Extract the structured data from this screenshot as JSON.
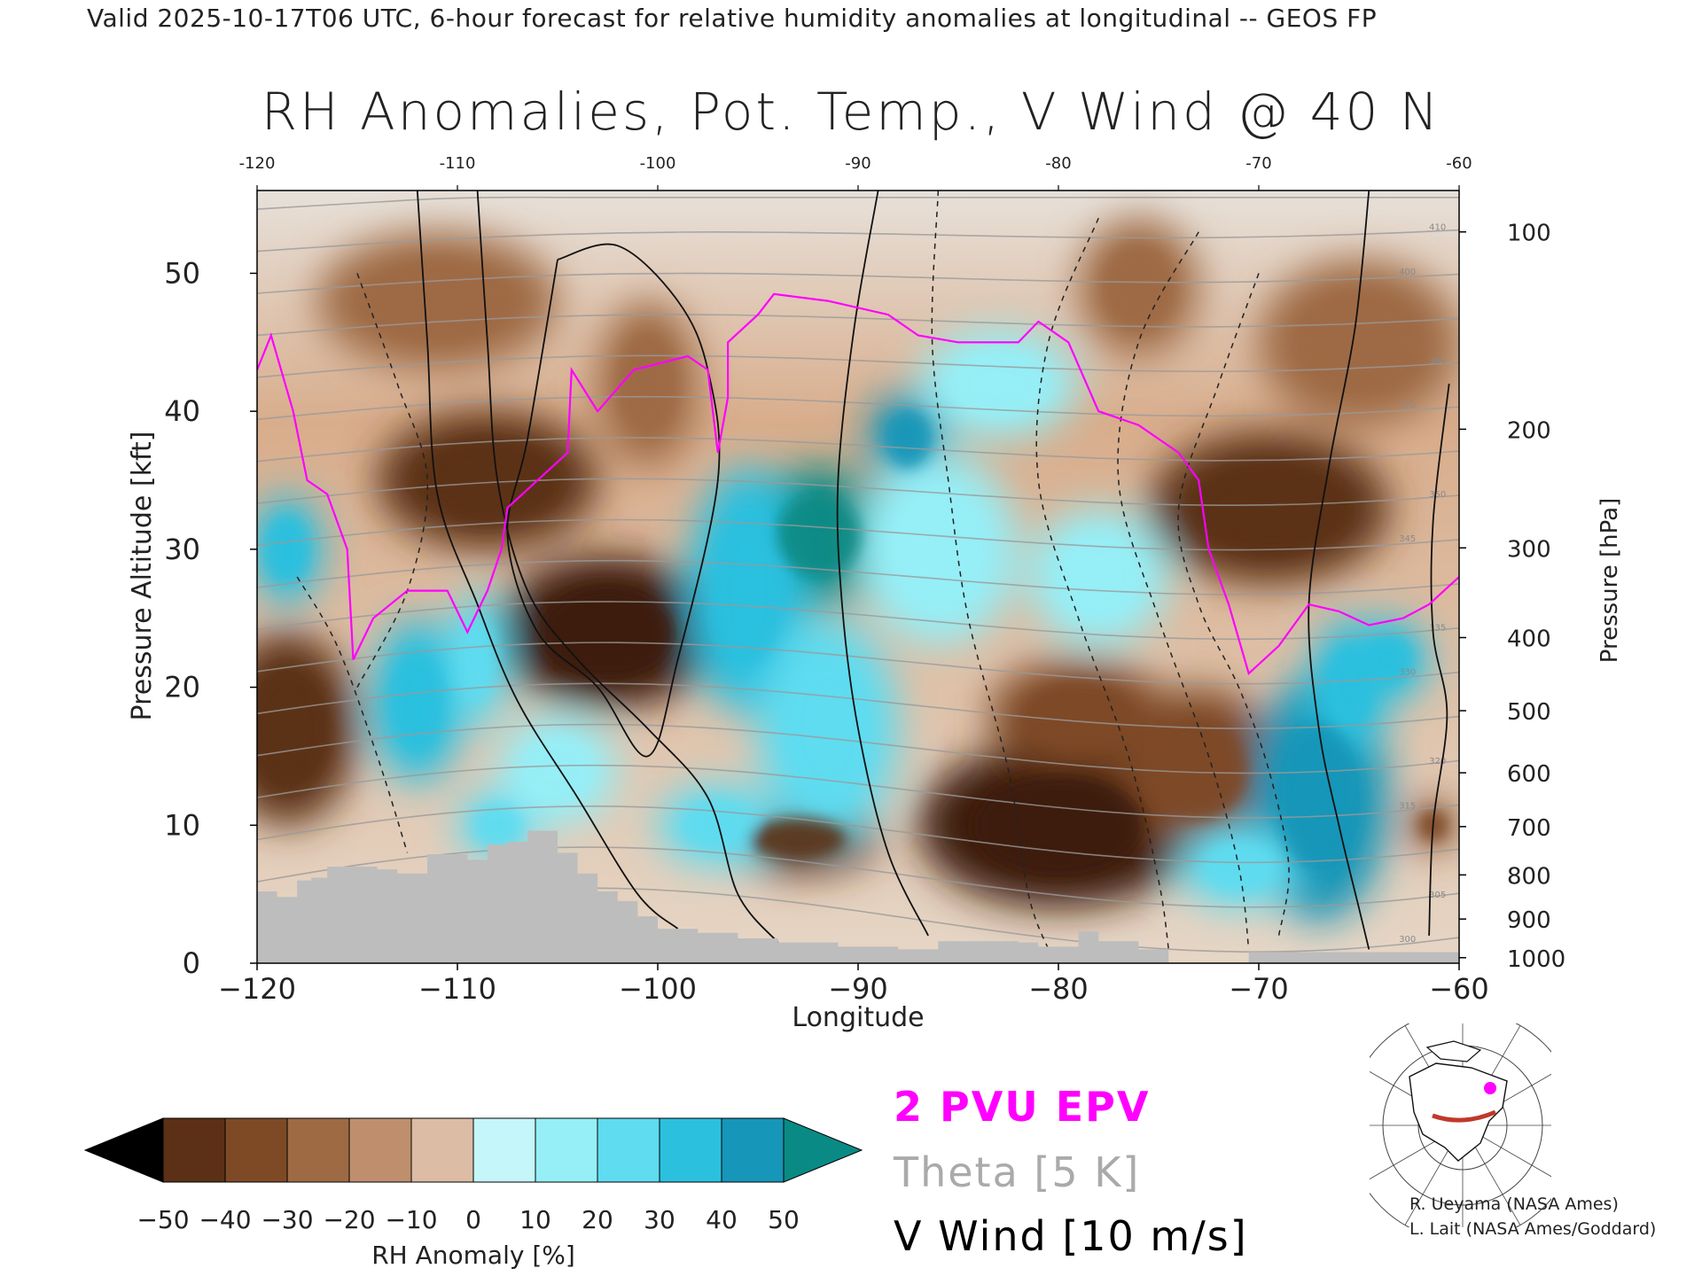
{
  "header": {
    "title": "Valid 2025-10-17T06 UTC, 6-hour forecast for relative humidity anomalies at longitudinal -- GEOS FP"
  },
  "chart_data": {
    "type": "heatmap",
    "title": "RH Anomalies, Pot. Temp., V Wind @ 40 N",
    "xlabel": "Longitude",
    "ylabel_left": "Pressure Altitude [kft]",
    "ylabel_right": "Pressure [hPa]",
    "xlim": [
      -120,
      -60
    ],
    "ylim": [
      0,
      56
    ],
    "x_ticks": [
      -120,
      -110,
      -100,
      -90,
      -80,
      -70,
      -60
    ],
    "x_tick_labels": [
      "−120",
      "−110",
      "−100",
      "−90",
      "−80",
      "−70",
      "−60"
    ],
    "top_ticks": [
      -120,
      -110,
      -100,
      -90,
      -80,
      -70,
      -60
    ],
    "top_tick_labels": [
      "-120",
      "-110",
      "-100",
      "-90",
      "-80",
      "-70",
      "-60"
    ],
    "y_ticks": [
      0,
      10,
      20,
      30,
      40,
      50
    ],
    "y_tick_labels": [
      "0",
      "10",
      "20",
      "30",
      "40",
      "50"
    ],
    "pressure_ticks": [
      {
        "hPa": "100",
        "kft": 53.0
      },
      {
        "hPa": "200",
        "kft": 38.7
      },
      {
        "hPa": "300",
        "kft": 30.1
      },
      {
        "hPa": "400",
        "kft": 23.6
      },
      {
        "hPa": "500",
        "kft": 18.3
      },
      {
        "hPa": "600",
        "kft": 13.8
      },
      {
        "hPa": "700",
        "kft": 9.9
      },
      {
        "hPa": "800",
        "kft": 6.4
      },
      {
        "hPa": "900",
        "kft": 3.2
      },
      {
        "hPa": "1000",
        "kft": 0.4
      }
    ],
    "colorbar": {
      "label": "RH Anomaly [%]",
      "ticks": [
        "−50",
        "−40",
        "−30",
        "−20",
        "−10",
        "0",
        "10",
        "20",
        "30",
        "40",
        "50"
      ],
      "colors": [
        "#3c1c0c",
        "#5c3016",
        "#7e4a26",
        "#9e6a44",
        "#bf8f6d",
        "#dcbca5",
        "#c4f6fa",
        "#96eef6",
        "#5fdcf0",
        "#2cc0df",
        "#1696b8",
        "#0a8a84"
      ]
    },
    "series": [
      {
        "name": "2 PVU EPV",
        "color": "#ff00ff"
      },
      {
        "name": "Theta [5 K]",
        "color": "#aaaaaa"
      },
      {
        "name": "V Wind [10 m/s]",
        "color": "#000000"
      }
    ],
    "pvu_line": [
      [
        -120,
        43
      ],
      [
        -119.3,
        45.5
      ],
      [
        -118.2,
        40
      ],
      [
        -117.5,
        35
      ],
      [
        -116.5,
        34
      ],
      [
        -115.5,
        30
      ],
      [
        -115.2,
        22
      ],
      [
        -114.2,
        25
      ],
      [
        -112.5,
        27
      ],
      [
        -110.5,
        27
      ],
      [
        -109.5,
        24
      ],
      [
        -108.5,
        27
      ],
      [
        -107.8,
        30
      ],
      [
        -107.5,
        33
      ],
      [
        -106,
        35
      ],
      [
        -104.5,
        37
      ],
      [
        -104.3,
        43
      ],
      [
        -103,
        40
      ],
      [
        -101.2,
        43
      ],
      [
        -98.5,
        44
      ],
      [
        -97.5,
        43
      ],
      [
        -97,
        37
      ],
      [
        -96.5,
        41
      ],
      [
        -96.5,
        45
      ],
      [
        -95,
        47
      ],
      [
        -94.2,
        48.5
      ],
      [
        -91.5,
        48
      ],
      [
        -88.5,
        47
      ],
      [
        -87,
        45.5
      ],
      [
        -85,
        45
      ],
      [
        -82,
        45
      ],
      [
        -81,
        46.5
      ],
      [
        -79.5,
        45
      ],
      [
        -78,
        40
      ],
      [
        -76,
        39
      ],
      [
        -74,
        37
      ],
      [
        -73,
        35
      ],
      [
        -72.5,
        30
      ],
      [
        -71.5,
        26
      ],
      [
        -70.5,
        21
      ],
      [
        -69,
        23
      ],
      [
        -67.5,
        26
      ],
      [
        -66,
        25.5
      ],
      [
        -64.5,
        24.5
      ],
      [
        -62.8,
        25
      ],
      [
        -61.5,
        26
      ],
      [
        -60,
        28
      ]
    ],
    "zero_wind_contours": [
      [
        [
          -112,
          56
        ],
        [
          -111.5,
          45
        ],
        [
          -111,
          34
        ],
        [
          -109,
          26
        ],
        [
          -107,
          19
        ],
        [
          -104,
          12
        ],
        [
          -101,
          5
        ],
        [
          -99,
          2.5
        ]
      ],
      [
        [
          -109,
          56
        ],
        [
          -108.5,
          45
        ],
        [
          -108,
          35
        ],
        [
          -106.5,
          27
        ],
        [
          -104,
          22
        ],
        [
          -100.5,
          17
        ],
        [
          -97.5,
          12
        ],
        [
          -96,
          5
        ],
        [
          -94,
          1.5
        ]
      ],
      [
        [
          -89,
          56
        ],
        [
          -90.2,
          46
        ],
        [
          -91,
          35
        ],
        [
          -90.8,
          26
        ],
        [
          -90,
          17
        ],
        [
          -88.5,
          8
        ],
        [
          -86.5,
          2
        ]
      ],
      [
        [
          -105,
          51
        ],
        [
          -102,
          52
        ],
        [
          -99,
          48
        ],
        [
          -97.5,
          43
        ],
        [
          -97,
          35
        ],
        [
          -99,
          22
        ],
        [
          -100.5,
          15
        ],
        [
          -103,
          20
        ],
        [
          -106,
          24
        ],
        [
          -107.5,
          31
        ],
        [
          -106.5,
          38
        ],
        [
          -105,
          51
        ]
      ],
      [
        [
          -64.5,
          56
        ],
        [
          -65.2,
          46
        ],
        [
          -66.5,
          36
        ],
        [
          -67.5,
          26
        ],
        [
          -67,
          17
        ],
        [
          -66,
          10
        ],
        [
          -65,
          4
        ],
        [
          -64.5,
          1
        ]
      ],
      [
        [
          -60.5,
          42
        ],
        [
          -61.3,
          32
        ],
        [
          -61.3,
          24
        ],
        [
          -60.6,
          18
        ],
        [
          -61.3,
          10
        ],
        [
          -61.5,
          2
        ]
      ]
    ],
    "negative_wind_contours": [
      [
        [
          -86,
          56
        ],
        [
          -86.3,
          45
        ],
        [
          -85.5,
          35
        ],
        [
          -84.5,
          25
        ],
        [
          -82.5,
          14
        ],
        [
          -81.5,
          5
        ],
        [
          -80.5,
          1
        ]
      ],
      [
        [
          -78,
          54
        ],
        [
          -80.5,
          45
        ],
        [
          -81,
          35
        ],
        [
          -79,
          25
        ],
        [
          -76.5,
          15
        ],
        [
          -75,
          6
        ],
        [
          -74.5,
          1
        ]
      ],
      [
        [
          -73,
          53
        ],
        [
          -76,
          45
        ],
        [
          -77,
          35
        ],
        [
          -75,
          25
        ],
        [
          -72.5,
          15
        ],
        [
          -71,
          7
        ],
        [
          -70.5,
          1
        ]
      ],
      [
        [
          -70,
          50
        ],
        [
          -72,
          42
        ],
        [
          -74,
          33
        ],
        [
          -73,
          26
        ],
        [
          -71,
          20
        ],
        [
          -69.5,
          14
        ],
        [
          -68.5,
          7
        ],
        [
          -69,
          2
        ]
      ],
      [
        [
          -115,
          50
        ],
        [
          -113,
          42
        ],
        [
          -111.5,
          35
        ],
        [
          -112.5,
          27
        ],
        [
          -115,
          20
        ]
      ],
      [
        [
          -118,
          28
        ],
        [
          -116,
          23
        ],
        [
          -114,
          15
        ],
        [
          -112.5,
          8
        ]
      ]
    ],
    "theta_levels": [
      300,
      305,
      310,
      315,
      320,
      325,
      330,
      335,
      340,
      345,
      350,
      360,
      370,
      380,
      390,
      400,
      410,
      420
    ],
    "terrain": [
      [
        -120,
        5.2
      ],
      [
        -119,
        4.8
      ],
      [
        -118,
        6
      ],
      [
        -117.3,
        6.2
      ],
      [
        -116.5,
        7
      ],
      [
        -114,
        6.8
      ],
      [
        -113,
        6.5
      ],
      [
        -111.5,
        7.9
      ],
      [
        -109.5,
        7.5
      ],
      [
        -108.5,
        8.6
      ],
      [
        -107.5,
        8.8
      ],
      [
        -106.5,
        9.6
      ],
      [
        -105,
        8
      ],
      [
        -104,
        6.5
      ],
      [
        -103,
        5.2
      ],
      [
        -102,
        4.5
      ],
      [
        -101,
        3.4
      ],
      [
        -100,
        2.5
      ],
      [
        -98,
        2.2
      ],
      [
        -96,
        1.8
      ],
      [
        -94,
        1.5
      ],
      [
        -91,
        1.2
      ],
      [
        -88,
        1.0
      ],
      [
        -86,
        1.6
      ],
      [
        -84,
        1.6
      ],
      [
        -82,
        1.5
      ],
      [
        -81,
        1.2
      ],
      [
        -79,
        2.3
      ],
      [
        -78,
        1.6
      ],
      [
        -76,
        1.0
      ],
      [
        -74.5,
        0
      ],
      [
        -70.5,
        0
      ],
      [
        -70.5,
        0.8
      ],
      [
        -60,
        0.8
      ]
    ],
    "rh_blobs": [
      {
        "lon": -108.5,
        "kft": 35,
        "rx": 5.5,
        "ry": 5,
        "value": -40
      },
      {
        "lon": -102.5,
        "kft": 24,
        "rx": 5.5,
        "ry": 5.5,
        "value": -45
      },
      {
        "lon": -118.5,
        "kft": 17,
        "rx": 3.5,
        "ry": 7,
        "value": -35
      },
      {
        "lon": -93,
        "kft": 9,
        "rx": 4,
        "ry": 2.5,
        "value": -35
      },
      {
        "lon": -80,
        "kft": 10,
        "rx": 7,
        "ry": 6,
        "value": -45
      },
      {
        "lon": -79,
        "kft": 18,
        "rx": 4.5,
        "ry": 4,
        "value": -25
      },
      {
        "lon": -69.5,
        "kft": 33,
        "rx": 6,
        "ry": 5.5,
        "value": -40
      },
      {
        "lon": -73,
        "kft": 14,
        "rx": 4,
        "ry": 6,
        "value": -30
      },
      {
        "lon": -111,
        "kft": 48,
        "rx": 6,
        "ry": 5,
        "value": -18
      },
      {
        "lon": -65,
        "kft": 45,
        "rx": 5,
        "ry": 6,
        "value": -18
      },
      {
        "lon": -76,
        "kft": 49,
        "rx": 3,
        "ry": 5,
        "value": -12
      },
      {
        "lon": -100.5,
        "kft": 42,
        "rx": 2.5,
        "ry": 6,
        "value": -18
      },
      {
        "lon": -61.3,
        "kft": 10,
        "rx": 1.2,
        "ry": 1.8,
        "value": -30
      },
      {
        "lon": -92,
        "kft": 31,
        "rx": 3.5,
        "ry": 5,
        "value": 50
      },
      {
        "lon": -95.5,
        "kft": 27,
        "rx": 3,
        "ry": 9,
        "value": 35
      },
      {
        "lon": -87.5,
        "kft": 38,
        "rx": 2,
        "ry": 3.5,
        "value": 45
      },
      {
        "lon": -91.5,
        "kft": 17,
        "rx": 3.5,
        "ry": 8,
        "value": 25
      },
      {
        "lon": -97,
        "kft": 10,
        "rx": 3,
        "ry": 3,
        "value": 25
      },
      {
        "lon": -112,
        "kft": 19,
        "rx": 2.3,
        "ry": 6,
        "value": 30
      },
      {
        "lon": -109,
        "kft": 22,
        "rx": 1.5,
        "ry": 5,
        "value": 20
      },
      {
        "lon": -108,
        "kft": 10,
        "rx": 2,
        "ry": 2.5,
        "value": 25
      },
      {
        "lon": -118.5,
        "kft": 30,
        "rx": 1.8,
        "ry": 4,
        "value": 30
      },
      {
        "lon": -67,
        "kft": 12,
        "rx": 3.5,
        "ry": 9,
        "value": 40
      },
      {
        "lon": -65.5,
        "kft": 20,
        "rx": 2,
        "ry": 5,
        "value": 35
      },
      {
        "lon": -71,
        "kft": 7,
        "rx": 3,
        "ry": 3,
        "value": 20
      },
      {
        "lon": -63.5,
        "kft": 22,
        "rx": 2,
        "ry": 3,
        "value": 30
      },
      {
        "lon": -86,
        "kft": 30,
        "rx": 4,
        "ry": 7,
        "value": 15
      },
      {
        "lon": -78,
        "kft": 28,
        "rx": 3.5,
        "ry": 5,
        "value": 10
      },
      {
        "lon": -83,
        "kft": 42,
        "rx": 4,
        "ry": 4,
        "value": 12
      },
      {
        "lon": -105,
        "kft": 14,
        "rx": 3,
        "ry": 4,
        "value": 15
      }
    ]
  },
  "legend": {
    "pvu": "2 PVU EPV",
    "theta": "Theta [5 K]",
    "vwind": "V Wind [10 m/s]"
  },
  "credits": {
    "line1": "R. Ueyama (NASA Ames)",
    "line2": "L. Lait (NASA Ames/Goddard)"
  }
}
